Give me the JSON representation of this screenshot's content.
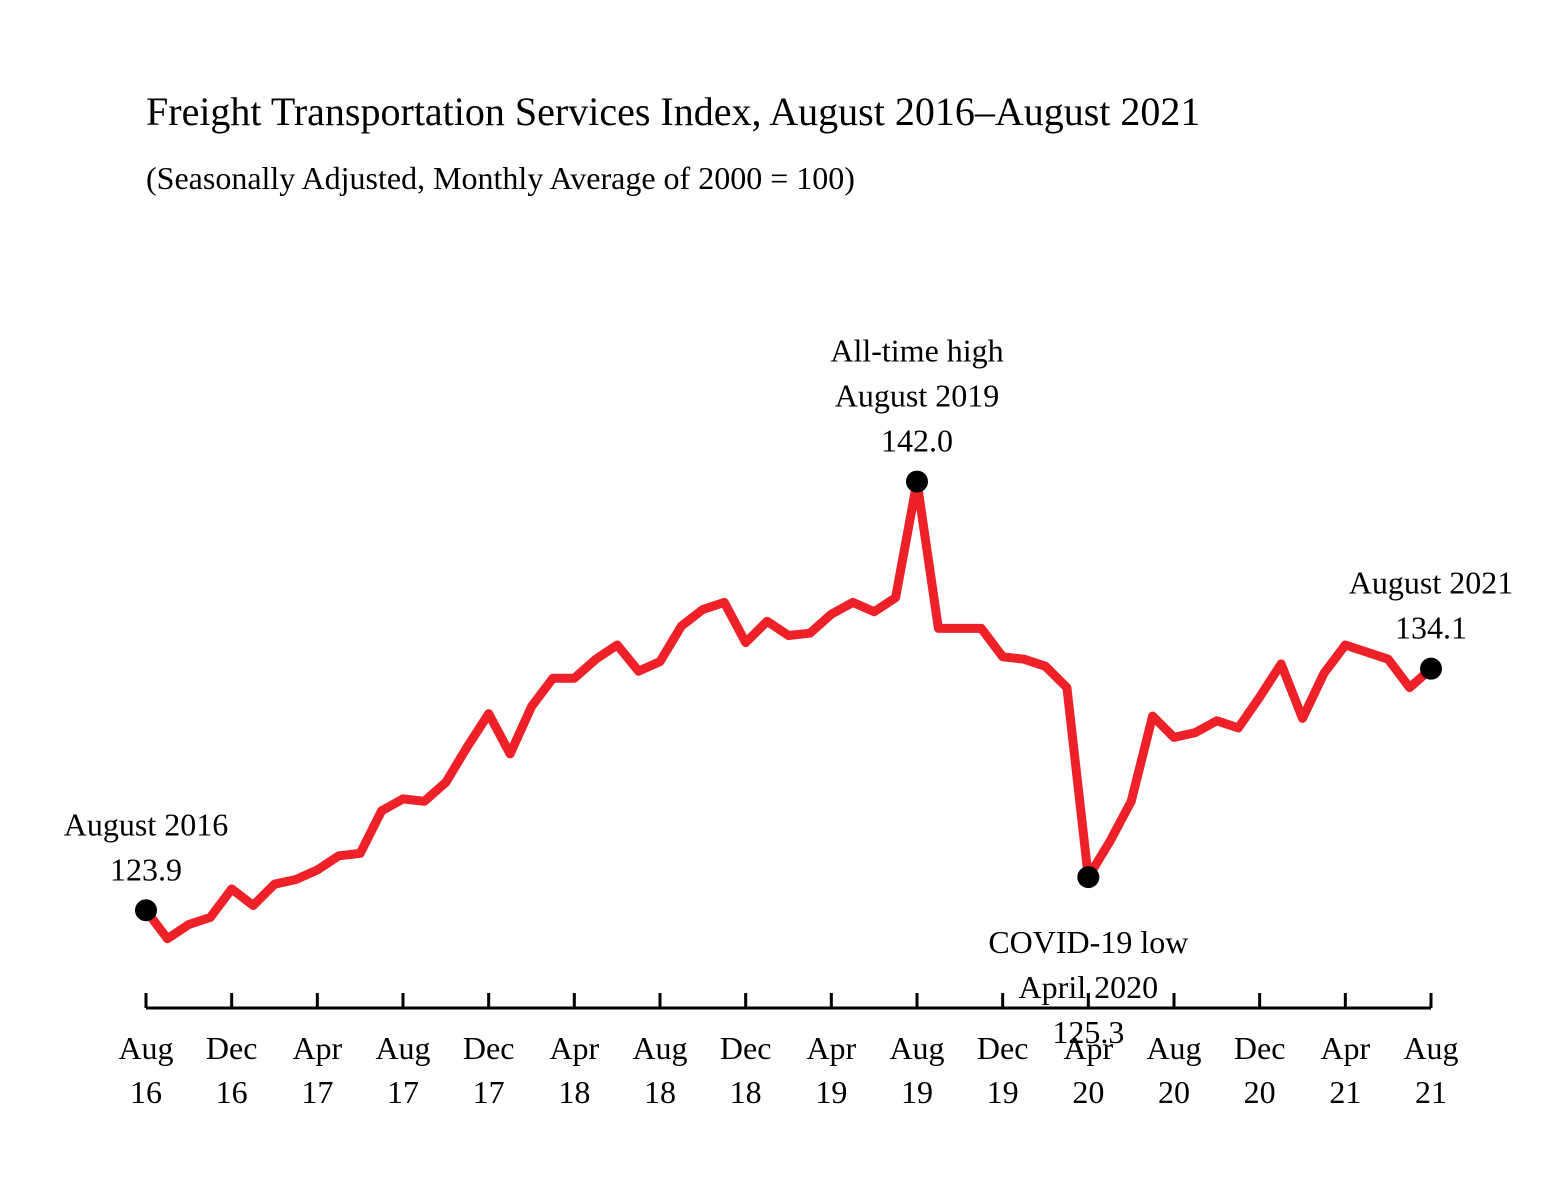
{
  "chart_data": {
    "type": "line",
    "title": "Freight Transportation Services Index, August 2016–August 2021",
    "subtitle": "(Seasonally Adjusted, Monthly Average of 2000 = 100)",
    "xlabel": "",
    "ylabel": "",
    "ylim": [
      118,
      156
    ],
    "grid": false,
    "line_color": "#ee2128",
    "marker_color": "#000000",
    "x": [
      "Aug 16",
      "Sep 16",
      "Oct 16",
      "Nov 16",
      "Dec 16",
      "Jan 17",
      "Feb 17",
      "Mar 17",
      "Apr 17",
      "May 17",
      "Jun 17",
      "Jul 17",
      "Aug 17",
      "Sep 17",
      "Oct 17",
      "Nov 17",
      "Dec 17",
      "Jan 18",
      "Feb 18",
      "Mar 18",
      "Apr 18",
      "May 18",
      "Jun 18",
      "Jul 18",
      "Aug 18",
      "Sep 18",
      "Oct 18",
      "Nov 18",
      "Dec 18",
      "Jan 19",
      "Feb 19",
      "Mar 19",
      "Apr 19",
      "May 19",
      "Jun 19",
      "Jul 19",
      "Aug 19",
      "Sep 19",
      "Oct 19",
      "Nov 19",
      "Dec 19",
      "Jan 20",
      "Feb 20",
      "Mar 20",
      "Apr 20",
      "May 20",
      "Jun 20",
      "Jul 20",
      "Aug 20",
      "Sep 20",
      "Oct 20",
      "Nov 20",
      "Dec 20",
      "Jan 21",
      "Feb 21",
      "Mar 21",
      "Apr 21",
      "May 21",
      "Jun 21",
      "Jul 21",
      "Aug 21"
    ],
    "series": [
      {
        "name": "Freight Transportation Services Index",
        "values": [
          123.9,
          122.7,
          123.3,
          123.6,
          124.8,
          124.1,
          125.0,
          125.2,
          125.6,
          126.2,
          126.3,
          128.1,
          128.6,
          128.5,
          129.3,
          130.8,
          132.2,
          130.5,
          132.5,
          133.7,
          133.7,
          134.5,
          135.1,
          134.0,
          134.4,
          135.9,
          136.6,
          136.9,
          135.2,
          136.1,
          135.5,
          135.6,
          136.4,
          136.9,
          136.5,
          137.1,
          142.0,
          135.8,
          135.8,
          135.8,
          134.6,
          134.5,
          134.2,
          133.3,
          125.3,
          126.8,
          128.5,
          132.1,
          131.2,
          131.4,
          131.9,
          131.6,
          132.9,
          134.3,
          132.0,
          133.9,
          135.1,
          134.8,
          134.5,
          133.3,
          134.1
        ]
      }
    ],
    "x_ticks": [
      {
        "line1": "Aug",
        "line2": "16",
        "index": 0
      },
      {
        "line1": "Dec",
        "line2": "16",
        "index": 4
      },
      {
        "line1": "Apr",
        "line2": "17",
        "index": 8
      },
      {
        "line1": "Aug",
        "line2": "17",
        "index": 12
      },
      {
        "line1": "Dec",
        "line2": "17",
        "index": 16
      },
      {
        "line1": "Apr",
        "line2": "18",
        "index": 20
      },
      {
        "line1": "Aug",
        "line2": "18",
        "index": 24
      },
      {
        "line1": "Dec",
        "line2": "18",
        "index": 28
      },
      {
        "line1": "Apr",
        "line2": "19",
        "index": 32
      },
      {
        "line1": "Aug",
        "line2": "19",
        "index": 36
      },
      {
        "line1": "Dec",
        "line2": "19",
        "index": 40
      },
      {
        "line1": "Apr",
        "line2": "20",
        "index": 44
      },
      {
        "line1": "Aug",
        "line2": "20",
        "index": 48
      },
      {
        "line1": "Dec",
        "line2": "20",
        "index": 52
      },
      {
        "line1": "Apr",
        "line2": "21",
        "index": 56
      },
      {
        "line1": "Aug",
        "line2": "21",
        "index": 60
      }
    ],
    "annotations": [
      {
        "name": "start",
        "index": 0,
        "lines": [
          "August 2016",
          "123.9"
        ],
        "position": "above"
      },
      {
        "name": "all-time-high",
        "index": 36,
        "lines": [
          "All-time high",
          "August 2019",
          "142.0"
        ],
        "position": "above"
      },
      {
        "name": "covid-low",
        "index": 44,
        "lines": [
          "COVID-19 low",
          "April 2020",
          "125.3"
        ],
        "position": "below"
      },
      {
        "name": "end",
        "index": 60,
        "lines": [
          "August 2021",
          "134.1"
        ],
        "position": "above"
      }
    ]
  }
}
